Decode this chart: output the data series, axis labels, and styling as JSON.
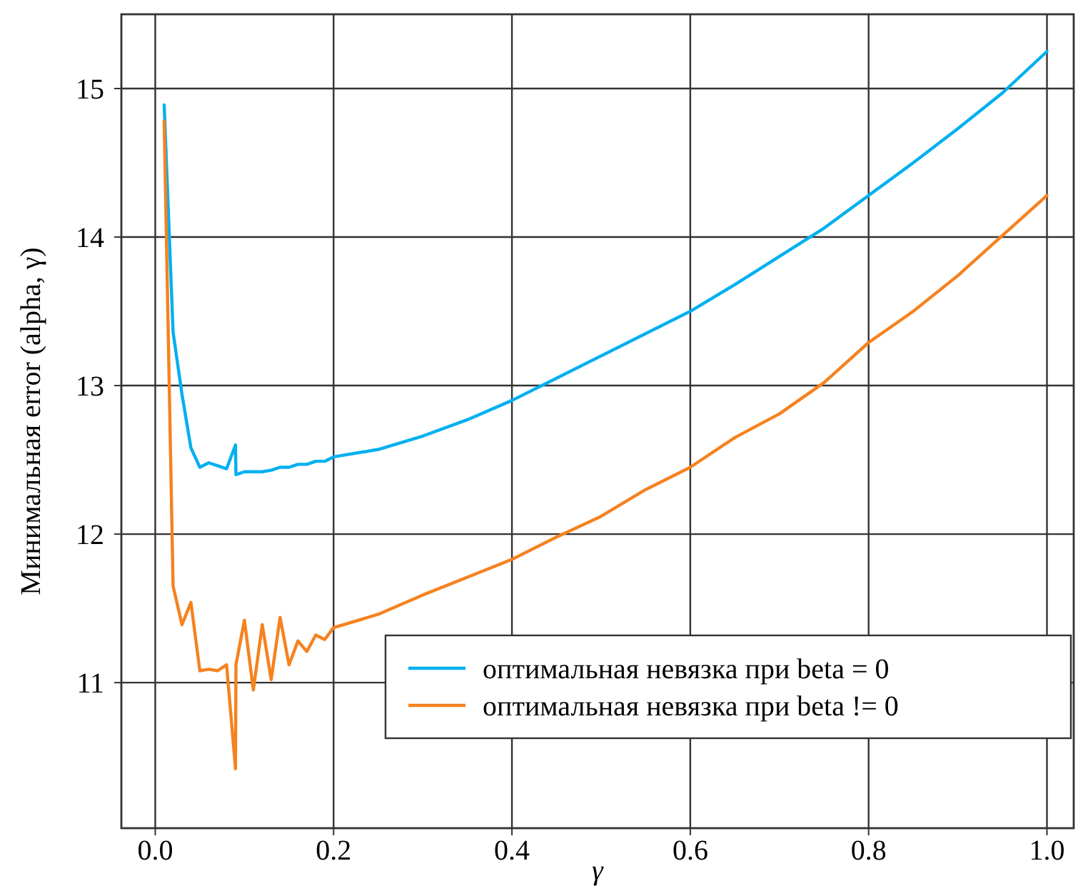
{
  "chart_data": {
    "type": "line",
    "xlabel": "γ",
    "ylabel": "Минимальная error (alpha, γ)",
    "xlim": [
      -0.038,
      1.03
    ],
    "ylim": [
      10.02,
      15.5
    ],
    "xticks": [
      {
        "value": 0,
        "label": "0.0"
      },
      0.2,
      0.4,
      0.6,
      0.8,
      {
        "value": 1,
        "label": "1.0"
      }
    ],
    "yticks": [
      11,
      12,
      13,
      14,
      15
    ],
    "grid": true,
    "legend": "bottom right",
    "line_style": "solid",
    "marker": "none",
    "series": [
      {
        "name": "оптимальная невязка при beta = 0",
        "color": "#00b0f0",
        "x": [
          0.01,
          0.02,
          0.03,
          0.04,
          0.05,
          0.06,
          0.07,
          0.08,
          0.09,
          0.0905,
          0.1,
          0.11,
          0.12,
          0.13,
          0.14,
          0.15,
          0.16,
          0.17,
          0.18,
          0.19,
          0.2,
          0.25,
          0.3,
          0.35,
          0.4,
          0.45,
          0.5,
          0.55,
          0.6,
          0.65,
          0.7,
          0.75,
          0.8,
          0.85,
          0.9,
          0.95,
          1.0
        ],
        "values": [
          14.89,
          13.36,
          12.94,
          12.58,
          12.45,
          12.48,
          12.46,
          12.44,
          12.6,
          12.4,
          12.42,
          12.42,
          12.42,
          12.43,
          12.45,
          12.45,
          12.47,
          12.47,
          12.49,
          12.49,
          12.52,
          12.57,
          12.66,
          12.77,
          12.9,
          13.05,
          13.2,
          13.35,
          13.5,
          13.68,
          13.87,
          14.06,
          14.28,
          14.5,
          14.73,
          14.97,
          15.25
        ]
      },
      {
        "name": "оптимальная невязка при beta != 0",
        "color": "#f5821f",
        "x": [
          0.01,
          0.02,
          0.03,
          0.04,
          0.05,
          0.06,
          0.07,
          0.08,
          0.09,
          0.0905,
          0.1,
          0.11,
          0.12,
          0.13,
          0.14,
          0.15,
          0.16,
          0.17,
          0.18,
          0.19,
          0.2,
          0.25,
          0.3,
          0.35,
          0.4,
          0.45,
          0.5,
          0.55,
          0.6,
          0.65,
          0.7,
          0.75,
          0.8,
          0.85,
          0.9,
          0.95,
          1.0
        ],
        "values": [
          14.78,
          11.65,
          11.39,
          11.54,
          11.08,
          11.09,
          11.08,
          11.12,
          10.42,
          11.12,
          11.42,
          10.95,
          11.39,
          11.02,
          11.44,
          11.12,
          11.28,
          11.21,
          11.32,
          11.29,
          11.37,
          11.46,
          11.59,
          11.71,
          11.83,
          11.98,
          12.12,
          12.3,
          12.45,
          12.65,
          12.81,
          13.02,
          13.29,
          13.5,
          13.74,
          14.01,
          14.28
        ]
      }
    ]
  }
}
